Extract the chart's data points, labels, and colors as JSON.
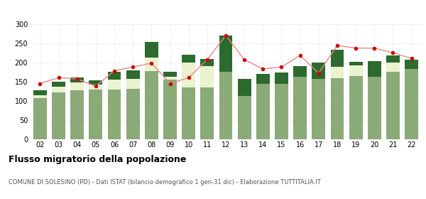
{
  "years": [
    "02",
    "03",
    "04",
    "05",
    "06",
    "07",
    "08",
    "09",
    "10",
    "11",
    "12",
    "13",
    "14",
    "15",
    "16",
    "17",
    "18",
    "19",
    "20",
    "21",
    "22"
  ],
  "iscritti_altri_comuni": [
    107,
    122,
    128,
    130,
    130,
    132,
    178,
    155,
    135,
    135,
    175,
    112,
    145,
    145,
    162,
    157,
    158,
    165,
    162,
    175,
    182
  ],
  "iscritti_estero": [
    8,
    15,
    20,
    12,
    25,
    25,
    35,
    8,
    65,
    55,
    0,
    0,
    0,
    0,
    0,
    0,
    30,
    28,
    0,
    25,
    0
  ],
  "iscritti_altri": [
    12,
    12,
    12,
    12,
    20,
    22,
    40,
    12,
    20,
    18,
    95,
    45,
    25,
    28,
    28,
    42,
    45,
    8,
    42,
    18,
    25
  ],
  "cancellati": [
    145,
    160,
    157,
    138,
    178,
    188,
    198,
    145,
    160,
    207,
    270,
    207,
    183,
    188,
    218,
    172,
    244,
    237,
    237,
    225,
    210
  ],
  "color_altri_comuni": "#8aaa78",
  "color_estero": "#eaf2d0",
  "color_altri": "#2d6a2d",
  "color_cancellati": "#cc0000",
  "color_cancellati_line": "#e88888",
  "ylabel_max": 300,
  "yticks": [
    0,
    50,
    100,
    150,
    200,
    250,
    300
  ],
  "title": "Flusso migratorio della popolazione",
  "subtitle": "COMUNE DI SOLESINO (PD) - Dati ISTAT (bilancio demografico 1 gen-31 dic) - Elaborazione TUTTITALIA.IT"
}
